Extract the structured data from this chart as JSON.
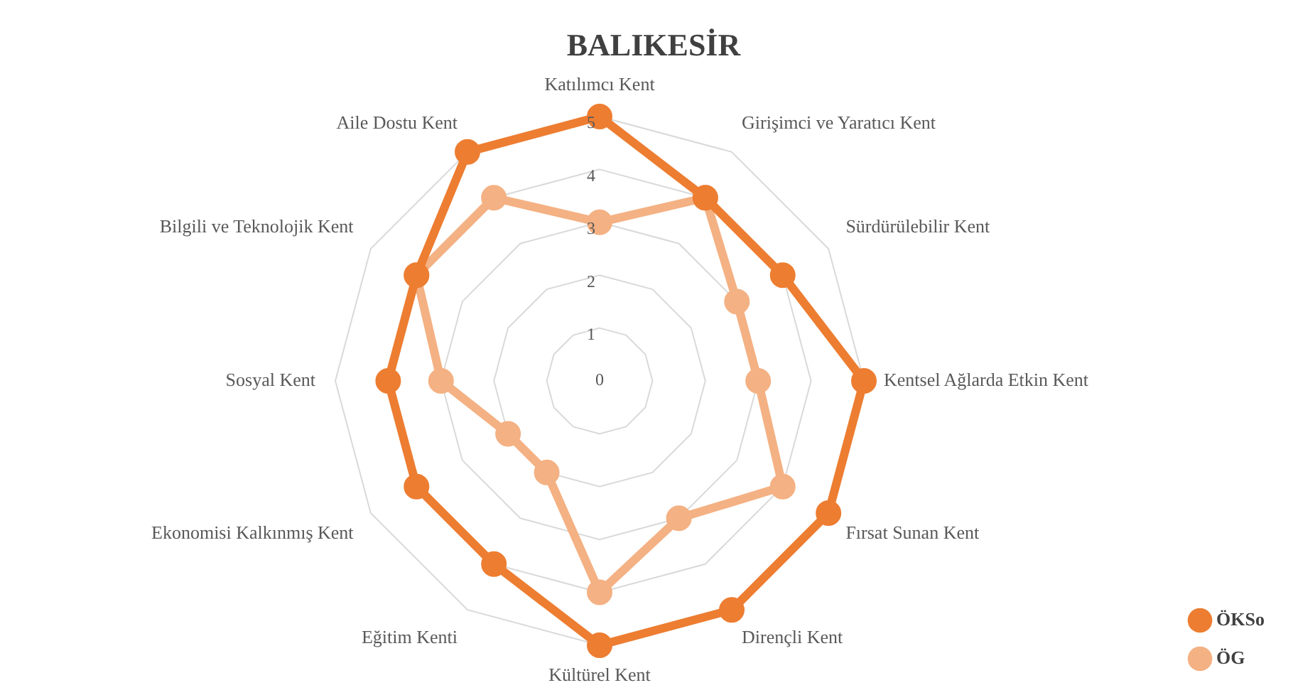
{
  "chart_data": {
    "type": "radar",
    "title": "BALIKESİR",
    "categories": [
      "Katılımcı Kent",
      "Girişimci ve Yaratıcı Kent",
      "Sürdürülebilir Kent",
      "Kentsel Ağlarda Etkin Kent",
      "Fırsat Sunan Kent",
      "Dirençli Kent",
      "Kültürel Kent",
      "Eğitim Kenti",
      "Ekonomisi Kalkınmış Kent",
      "Sosyal Kent",
      "Bilgili ve Teknolojik Kent",
      "Aile Dostu Kent"
    ],
    "series": [
      {
        "name": "ÖKSo",
        "color": "#ed7d31",
        "values": [
          5,
          4,
          4,
          5,
          5,
          5,
          5,
          4,
          4,
          4,
          4,
          5
        ]
      },
      {
        "name": "ÖG",
        "color": "#f4b183",
        "values": [
          3,
          4,
          3,
          3,
          4,
          3,
          4,
          2,
          2,
          3,
          4,
          4
        ]
      }
    ],
    "ylim": [
      0,
      5
    ],
    "yticks": [
      0,
      1,
      2,
      3,
      4,
      5
    ],
    "grid": true,
    "legend": "bottom right",
    "marker": "circle",
    "line_style": "solid"
  }
}
